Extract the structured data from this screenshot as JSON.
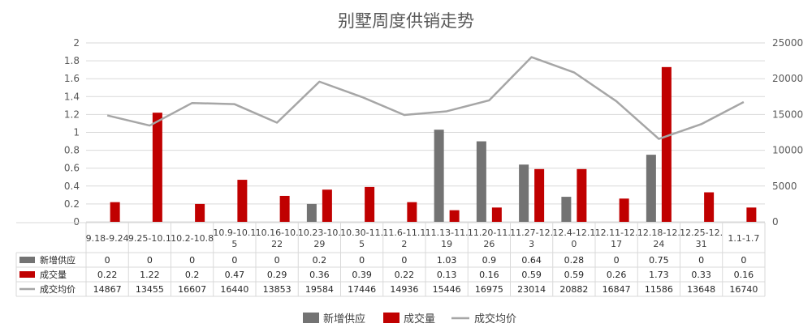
{
  "chart_data": {
    "type": "bar",
    "title": "别墅周度供销走势",
    "categories": [
      [
        "9.18-9.24"
      ],
      [
        "9.25-10.1"
      ],
      [
        "10.2-10.8"
      ],
      [
        "10.9-10.1",
        "5"
      ],
      [
        "10.16-10.",
        "22"
      ],
      [
        "10.23-10.",
        "29"
      ],
      [
        "10.30-11.",
        "5"
      ],
      [
        "11.6-11.1",
        "2"
      ],
      [
        "11.13-11.",
        "19"
      ],
      [
        "11.20-11.",
        "26"
      ],
      [
        "11.27-12.",
        "3"
      ],
      [
        "12.4-12.1",
        "0"
      ],
      [
        "12.11-12.",
        "17"
      ],
      [
        "12.18-12.",
        "24"
      ],
      [
        "12.25-12.",
        "31"
      ],
      [
        "1.1-1.7"
      ]
    ],
    "series": [
      {
        "name": "新增供应",
        "type": "bar",
        "axis": "left",
        "color": "#737373",
        "values": [
          0,
          0,
          0,
          0,
          0,
          0.2,
          0,
          0,
          1.03,
          0.9,
          0.64,
          0.28,
          0,
          0.75,
          0,
          0
        ],
        "labels": [
          "0",
          "0",
          "0",
          "0",
          "0",
          "0.2",
          "0",
          "0",
          "1.03",
          "0.9",
          "0.64",
          "0.28",
          "0",
          "0.75",
          "0",
          "0"
        ]
      },
      {
        "name": "成交量",
        "type": "bar",
        "axis": "left",
        "color": "#c00000",
        "values": [
          0.22,
          1.22,
          0.2,
          0.47,
          0.29,
          0.36,
          0.39,
          0.22,
          0.13,
          0.16,
          0.59,
          0.59,
          0.26,
          1.73,
          0.33,
          0.16
        ],
        "labels": [
          "0.22",
          "1.22",
          "0.2",
          "0.47",
          "0.29",
          "0.36",
          "0.39",
          "0.22",
          "0.13",
          "0.16",
          "0.59",
          "0.59",
          "0.26",
          "1.73",
          "0.33",
          "0.16"
        ]
      },
      {
        "name": "成交均价",
        "type": "line",
        "axis": "right",
        "color": "#a6a6a6",
        "values": [
          14867,
          13455,
          16607,
          16440,
          13853,
          19584,
          17446,
          14936,
          15446,
          16975,
          23014,
          20882,
          16847,
          11586,
          13648,
          16740
        ],
        "labels": [
          "14867",
          "13455",
          "16607",
          "16440",
          "13853",
          "19584",
          "17446",
          "14936",
          "15446",
          "16975",
          "23014",
          "20882",
          "16847",
          "11586",
          "13648",
          "16740"
        ]
      }
    ],
    "y_left": {
      "ylim": [
        0,
        2
      ],
      "ticks": [
        "0",
        "0.2",
        "0.4",
        "0.6",
        "0.8",
        "1",
        "1.2",
        "1.4",
        "1.6",
        "1.8",
        "2"
      ]
    },
    "y_right": {
      "ylim": [
        0,
        25000
      ],
      "ticks": [
        "0",
        "5000",
        "10000",
        "15000",
        "20000",
        "25000"
      ]
    },
    "grid": true,
    "data_table": true,
    "legend_position": "bottom"
  }
}
